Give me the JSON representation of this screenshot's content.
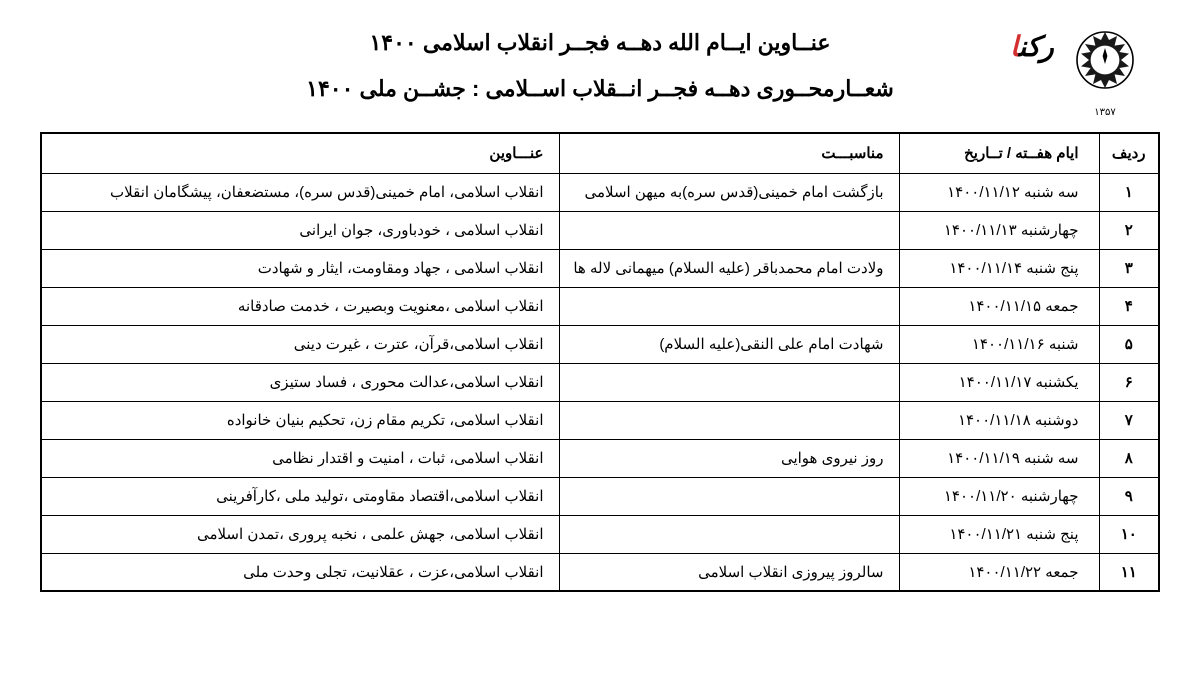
{
  "header": {
    "title1": "عنــاوین ایــام الله دهــه فجــر انقلاب اسلامی ۱۴۰۰",
    "title2": "شعــارمحــوری دهــه فجــر انــقلاب اســلامی : جشــن ملی ۱۴۰۰"
  },
  "logo": {
    "year": "۱۳۵۷",
    "brand1": "رکن",
    "brand2": "ا"
  },
  "table": {
    "columns": {
      "row": "ردیف",
      "date": "ایام هفــته / تــاریخ",
      "occasion": "مناسبـــت",
      "titles": "عنـــاوین"
    },
    "rows": [
      {
        "num": "۱",
        "date": "سه شنبه ۱۴۰۰/۱۱/۱۲",
        "occasion": "بازگشت امام خمینی(قدس سره)به میهن اسلامی",
        "titles": "انقلاب اسلامی، امام خمینی(قدس سره)، مستضعفان، پیشگامان انقلاب"
      },
      {
        "num": "۲",
        "date": "چهارشنبه ۱۴۰۰/۱۱/۱۳",
        "occasion": "",
        "titles": "انقلاب اسلامی ، خودباوری، جوان ایرانی"
      },
      {
        "num": "۳",
        "date": "پنج شنبه ۱۴۰۰/۱۱/۱۴",
        "occasion": "ولادت امام محمدباقر (علیه السلام) میهمانی لاله ها",
        "titles": "انقلاب اسلامی ، جهاد ومقاومت، ایثار و شهادت"
      },
      {
        "num": "۴",
        "date": "جمعه    ۱۴۰۰/۱۱/۱۵",
        "occasion": "",
        "titles": "انقلاب اسلامی ،معنویت وبصیرت ، خدمت صادقانه"
      },
      {
        "num": "۵",
        "date": "شنبه    ۱۴۰۰/۱۱/۱۶",
        "occasion": "شهادت امام علی النقی(علیه السلام)",
        "titles": "انقلاب اسلامی،قرآن، عترت ، غیرت دینی"
      },
      {
        "num": "۶",
        "date": "یکشنبه ۱۴۰۰/۱۱/۱۷",
        "occasion": "",
        "titles": "انقلاب اسلامی،عدالت محوری ، فساد ستیزی"
      },
      {
        "num": "۷",
        "date": "دوشنبه ۱۴۰۰/۱۱/۱۸",
        "occasion": "",
        "titles": "انقلاب اسلامی، تکریم مقام زن، تحکیم بنیان خانواده"
      },
      {
        "num": "۸",
        "date": "سه شنبه ۱۴۰۰/۱۱/۱۹",
        "occasion": "روز نیروی هوایی",
        "titles": "انقلاب اسلامی، ثبات ، امنیت و اقتدار نظامی"
      },
      {
        "num": "۹",
        "date": "چهارشنبه ۱۴۰۰/۱۱/۲۰",
        "occasion": "",
        "titles": "انقلاب اسلامی،اقتصاد مقاومتی ،تولید ملی ،کارآفرینی"
      },
      {
        "num": "۱۰",
        "date": "پنج شنبه ۱۴۰۰/۱۱/۲۱",
        "occasion": "",
        "titles": "انقلاب اسلامی، جهش علمی ، نخبه پروری ،تمدن اسلامی"
      },
      {
        "num": "۱۱",
        "date": "جمعه   ۱۴۰۰/۱۱/۲۲",
        "occasion": "سالروز پیروزی انقلاب اسلامی",
        "titles": "انقلاب اسلامی،عزت ، عقلانیت، تجلی وحدت ملی"
      }
    ]
  },
  "styling": {
    "border_color": "#000000",
    "background_color": "#ffffff",
    "text_color": "#000000",
    "accent_color": "#d32f2f",
    "title_fontsize": 22,
    "header_fontsize": 15,
    "body_fontsize": 15,
    "col_widths": {
      "row": 60,
      "date": 200,
      "occasion": 340
    }
  }
}
